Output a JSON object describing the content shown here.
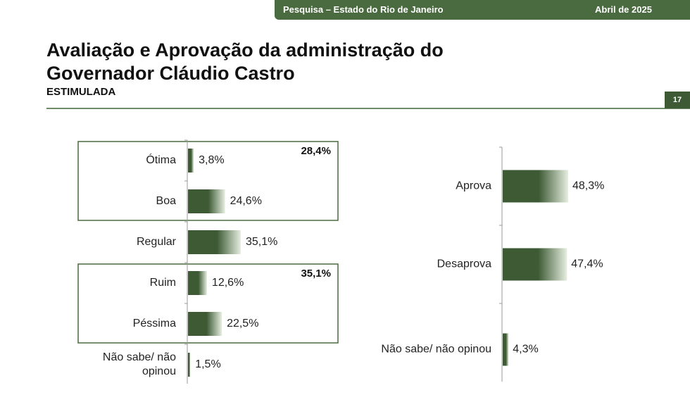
{
  "header": {
    "survey": "Pesquisa – Estado do Rio de Janeiro",
    "date": "Abril de 2025",
    "page_number": "17"
  },
  "title": "Avaliação e Aprovação da administração do Governador Cláudio Castro",
  "subtitle": "ESTIMULADA",
  "colors": {
    "bar": "#3d5a34",
    "bar_light": "#e6eee0",
    "accent": "#4a6a3f"
  },
  "chart_data": [
    {
      "type": "bar",
      "orientation": "horizontal",
      "categories": [
        "Ótima",
        "Boa",
        "Regular",
        "Ruim",
        "Péssima",
        "Não sabe/ não opinou"
      ],
      "values": [
        3.8,
        24.6,
        35.1,
        12.6,
        22.5,
        1.5
      ],
      "value_labels": [
        "3,8%",
        "24,6%",
        "35,1%",
        "12,6%",
        "22,5%",
        "1,5%"
      ],
      "groups": [
        {
          "categories": [
            "Ótima",
            "Boa"
          ],
          "total": "28,4%"
        },
        {
          "categories": [
            "Ruim",
            "Péssima"
          ],
          "total": "35,1%"
        }
      ],
      "xlim": [
        0,
        50
      ]
    },
    {
      "type": "bar",
      "orientation": "horizontal",
      "categories": [
        "Aprova",
        "Desaprova",
        "Não sabe/ não opinou"
      ],
      "values": [
        48.3,
        47.4,
        4.3
      ],
      "value_labels": [
        "48,3%",
        "47,4%",
        "4,3%"
      ],
      "xlim": [
        0,
        50
      ]
    }
  ]
}
